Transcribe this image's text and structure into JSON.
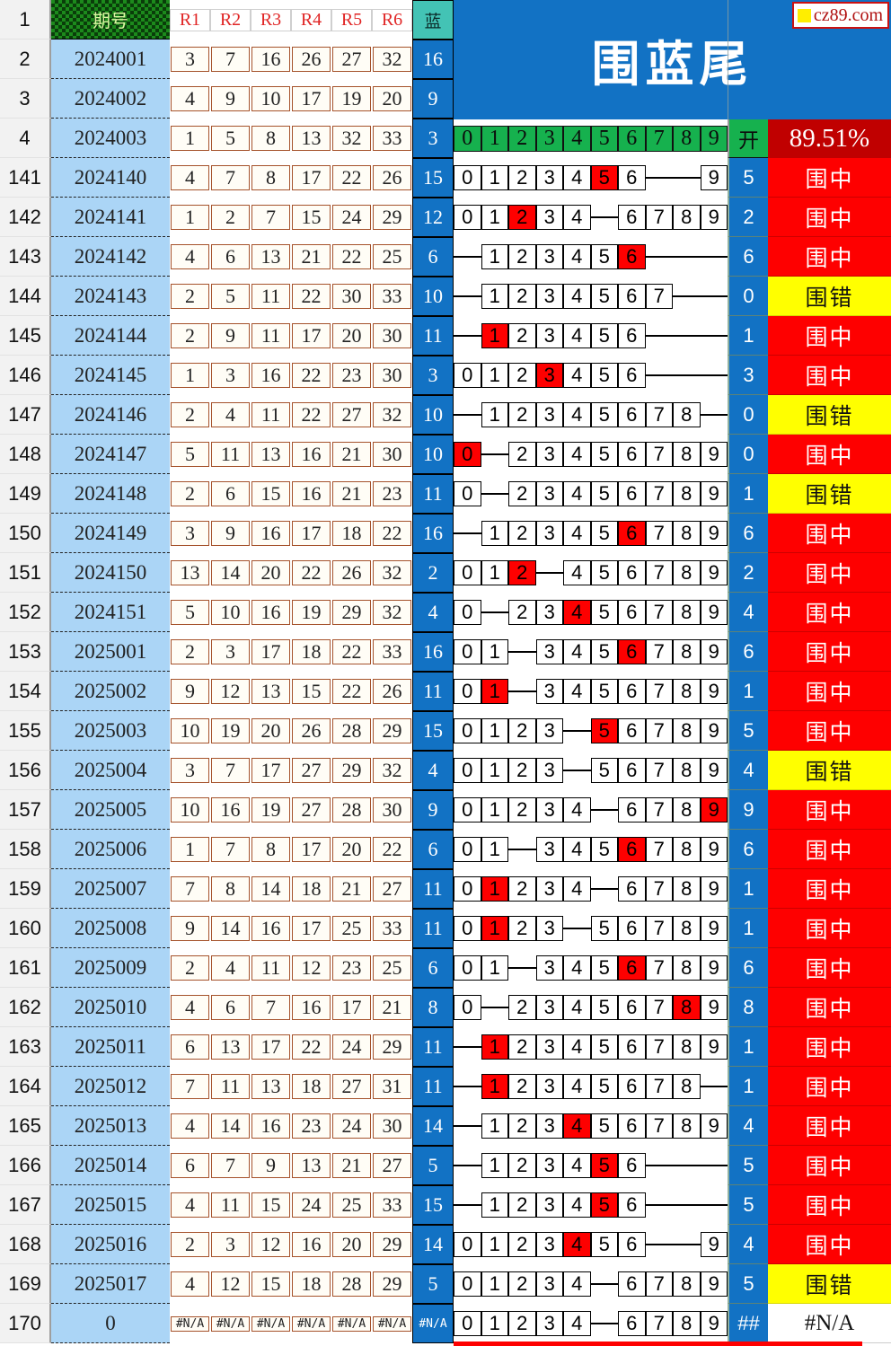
{
  "columns": {
    "period_label": "期号",
    "r_labels": [
      "R1",
      "R2",
      "R3",
      "R4",
      "R5",
      "R6"
    ],
    "blue_label": "蓝",
    "digit_labels": [
      "0",
      "1",
      "2",
      "3",
      "4",
      "5",
      "6",
      "7",
      "8",
      "9"
    ],
    "open_label": "开",
    "rate": "89.51%"
  },
  "title": {
    "text": "围蓝尾",
    "logo": "cz89.com"
  },
  "frozen_rows": [
    {
      "n": "2",
      "period": "2024001",
      "r": [
        "3",
        "7",
        "16",
        "26",
        "27",
        "32"
      ],
      "blue": "16"
    },
    {
      "n": "3",
      "period": "2024002",
      "r": [
        "4",
        "9",
        "10",
        "17",
        "19",
        "20"
      ],
      "blue": "9"
    },
    {
      "n": "4",
      "period": "2024003",
      "r": [
        "1",
        "5",
        "8",
        "13",
        "32",
        "33"
      ],
      "blue": "3"
    }
  ],
  "rows": [
    {
      "n": "141",
      "period": "2024140",
      "r": [
        "4",
        "7",
        "8",
        "17",
        "22",
        "26"
      ],
      "blue": "15",
      "cells": [
        "0",
        "1",
        "2",
        "3",
        "4",
        "5",
        "6",
        "",
        "",
        "9"
      ],
      "red": 5,
      "open": "5",
      "result": "围中",
      "status": "hit"
    },
    {
      "n": "142",
      "period": "2024141",
      "r": [
        "1",
        "2",
        "7",
        "15",
        "24",
        "29"
      ],
      "blue": "12",
      "cells": [
        "0",
        "1",
        "2",
        "3",
        "4",
        "",
        "6",
        "7",
        "8",
        "9"
      ],
      "red": 2,
      "open": "2",
      "result": "围中",
      "status": "hit"
    },
    {
      "n": "143",
      "period": "2024142",
      "r": [
        "4",
        "6",
        "13",
        "21",
        "22",
        "25"
      ],
      "blue": "6",
      "cells": [
        "",
        "1",
        "2",
        "3",
        "4",
        "5",
        "6",
        "",
        "",
        ""
      ],
      "red": 6,
      "open": "6",
      "result": "围中",
      "status": "hit"
    },
    {
      "n": "144",
      "period": "2024143",
      "r": [
        "2",
        "5",
        "11",
        "22",
        "30",
        "33"
      ],
      "blue": "10",
      "cells": [
        "",
        "1",
        "2",
        "3",
        "4",
        "5",
        "6",
        "7",
        "",
        ""
      ],
      "red": -1,
      "open": "0",
      "result": "围错",
      "status": "miss"
    },
    {
      "n": "145",
      "period": "2024144",
      "r": [
        "2",
        "9",
        "11",
        "17",
        "20",
        "30"
      ],
      "blue": "11",
      "cells": [
        "",
        "1",
        "2",
        "3",
        "4",
        "5",
        "6",
        "",
        "",
        ""
      ],
      "red": 1,
      "open": "1",
      "result": "围中",
      "status": "hit"
    },
    {
      "n": "146",
      "period": "2024145",
      "r": [
        "1",
        "3",
        "16",
        "22",
        "23",
        "30"
      ],
      "blue": "3",
      "cells": [
        "0",
        "1",
        "2",
        "3",
        "4",
        "5",
        "6",
        "",
        "",
        ""
      ],
      "red": 3,
      "open": "3",
      "result": "围中",
      "status": "hit"
    },
    {
      "n": "147",
      "period": "2024146",
      "r": [
        "2",
        "4",
        "11",
        "22",
        "27",
        "32"
      ],
      "blue": "10",
      "cells": [
        "",
        "1",
        "2",
        "3",
        "4",
        "5",
        "6",
        "7",
        "8",
        ""
      ],
      "red": -1,
      "open": "0",
      "result": "围错",
      "status": "miss"
    },
    {
      "n": "148",
      "period": "2024147",
      "r": [
        "5",
        "11",
        "13",
        "16",
        "21",
        "30"
      ],
      "blue": "10",
      "cells": [
        "0",
        "",
        "2",
        "3",
        "4",
        "5",
        "6",
        "7",
        "8",
        "9"
      ],
      "red": 0,
      "open": "0",
      "result": "围中",
      "status": "hit"
    },
    {
      "n": "149",
      "period": "2024148",
      "r": [
        "2",
        "6",
        "15",
        "16",
        "21",
        "23"
      ],
      "blue": "11",
      "cells": [
        "0",
        "",
        "2",
        "3",
        "4",
        "5",
        "6",
        "7",
        "8",
        "9"
      ],
      "red": -1,
      "open": "1",
      "result": "围错",
      "status": "miss"
    },
    {
      "n": "150",
      "period": "2024149",
      "r": [
        "3",
        "9",
        "16",
        "17",
        "18",
        "22"
      ],
      "blue": "16",
      "cells": [
        "",
        "1",
        "2",
        "3",
        "4",
        "5",
        "6",
        "7",
        "8",
        "9"
      ],
      "red": 6,
      "open": "6",
      "result": "围中",
      "status": "hit"
    },
    {
      "n": "151",
      "period": "2024150",
      "r": [
        "13",
        "14",
        "20",
        "22",
        "26",
        "32"
      ],
      "blue": "2",
      "cells": [
        "0",
        "1",
        "2",
        "",
        "4",
        "5",
        "6",
        "7",
        "8",
        "9"
      ],
      "red": 2,
      "open": "2",
      "result": "围中",
      "status": "hit"
    },
    {
      "n": "152",
      "period": "2024151",
      "r": [
        "5",
        "10",
        "16",
        "19",
        "29",
        "32"
      ],
      "blue": "4",
      "cells": [
        "0",
        "",
        "2",
        "3",
        "4",
        "5",
        "6",
        "7",
        "8",
        "9"
      ],
      "red": 4,
      "open": "4",
      "result": "围中",
      "status": "hit"
    },
    {
      "n": "153",
      "period": "2025001",
      "r": [
        "2",
        "3",
        "17",
        "18",
        "22",
        "33"
      ],
      "blue": "16",
      "cells": [
        "0",
        "1",
        "",
        "3",
        "4",
        "5",
        "6",
        "7",
        "8",
        "9"
      ],
      "red": 6,
      "open": "6",
      "result": "围中",
      "status": "hit"
    },
    {
      "n": "154",
      "period": "2025002",
      "r": [
        "9",
        "12",
        "13",
        "15",
        "22",
        "26"
      ],
      "blue": "11",
      "cells": [
        "0",
        "1",
        "",
        "3",
        "4",
        "5",
        "6",
        "7",
        "8",
        "9"
      ],
      "red": 1,
      "open": "1",
      "result": "围中",
      "status": "hit"
    },
    {
      "n": "155",
      "period": "2025003",
      "r": [
        "10",
        "19",
        "20",
        "26",
        "28",
        "29"
      ],
      "blue": "15",
      "cells": [
        "0",
        "1",
        "2",
        "3",
        "",
        "5",
        "6",
        "7",
        "8",
        "9"
      ],
      "red": 5,
      "open": "5",
      "result": "围中",
      "status": "hit"
    },
    {
      "n": "156",
      "period": "2025004",
      "r": [
        "3",
        "7",
        "17",
        "27",
        "29",
        "32"
      ],
      "blue": "4",
      "cells": [
        "0",
        "1",
        "2",
        "3",
        "",
        "5",
        "6",
        "7",
        "8",
        "9"
      ],
      "red": -1,
      "open": "4",
      "result": "围错",
      "status": "miss"
    },
    {
      "n": "157",
      "period": "2025005",
      "r": [
        "10",
        "16",
        "19",
        "27",
        "28",
        "30"
      ],
      "blue": "9",
      "cells": [
        "0",
        "1",
        "2",
        "3",
        "4",
        "",
        "6",
        "7",
        "8",
        "9"
      ],
      "red": 9,
      "open": "9",
      "result": "围中",
      "status": "hit"
    },
    {
      "n": "158",
      "period": "2025006",
      "r": [
        "1",
        "7",
        "8",
        "17",
        "20",
        "22"
      ],
      "blue": "6",
      "cells": [
        "0",
        "1",
        "",
        "3",
        "4",
        "5",
        "6",
        "7",
        "8",
        "9"
      ],
      "red": 6,
      "open": "6",
      "result": "围中",
      "status": "hit"
    },
    {
      "n": "159",
      "period": "2025007",
      "r": [
        "7",
        "8",
        "14",
        "18",
        "21",
        "27"
      ],
      "blue": "11",
      "cells": [
        "0",
        "1",
        "2",
        "3",
        "4",
        "",
        "6",
        "7",
        "8",
        "9"
      ],
      "red": 1,
      "open": "1",
      "result": "围中",
      "status": "hit"
    },
    {
      "n": "160",
      "period": "2025008",
      "r": [
        "9",
        "14",
        "16",
        "17",
        "25",
        "33"
      ],
      "blue": "11",
      "cells": [
        "0",
        "1",
        "2",
        "3",
        "",
        "5",
        "6",
        "7",
        "8",
        "9"
      ],
      "red": 1,
      "open": "1",
      "result": "围中",
      "status": "hit"
    },
    {
      "n": "161",
      "period": "2025009",
      "r": [
        "2",
        "4",
        "11",
        "12",
        "23",
        "25"
      ],
      "blue": "6",
      "cells": [
        "0",
        "1",
        "",
        "3",
        "4",
        "5",
        "6",
        "7",
        "8",
        "9"
      ],
      "red": 6,
      "open": "6",
      "result": "围中",
      "status": "hit"
    },
    {
      "n": "162",
      "period": "2025010",
      "r": [
        "4",
        "6",
        "7",
        "16",
        "17",
        "21"
      ],
      "blue": "8",
      "cells": [
        "0",
        "",
        "2",
        "3",
        "4",
        "5",
        "6",
        "7",
        "8",
        "9"
      ],
      "red": 8,
      "open": "8",
      "result": "围中",
      "status": "hit"
    },
    {
      "n": "163",
      "period": "2025011",
      "r": [
        "6",
        "13",
        "17",
        "22",
        "24",
        "29"
      ],
      "blue": "11",
      "cells": [
        "",
        "1",
        "2",
        "3",
        "4",
        "5",
        "6",
        "7",
        "8",
        "9"
      ],
      "red": 1,
      "open": "1",
      "result": "围中",
      "status": "hit"
    },
    {
      "n": "164",
      "period": "2025012",
      "r": [
        "7",
        "11",
        "13",
        "18",
        "27",
        "31"
      ],
      "blue": "11",
      "cells": [
        "",
        "1",
        "2",
        "3",
        "4",
        "5",
        "6",
        "7",
        "8",
        ""
      ],
      "red": 1,
      "open": "1",
      "result": "围中",
      "status": "hit"
    },
    {
      "n": "165",
      "period": "2025013",
      "r": [
        "4",
        "14",
        "16",
        "23",
        "24",
        "30"
      ],
      "blue": "14",
      "cells": [
        "",
        "1",
        "2",
        "3",
        "4",
        "5",
        "6",
        "7",
        "8",
        "9"
      ],
      "red": 4,
      "open": "4",
      "result": "围中",
      "status": "hit"
    },
    {
      "n": "166",
      "period": "2025014",
      "r": [
        "6",
        "7",
        "9",
        "13",
        "21",
        "27"
      ],
      "blue": "5",
      "cells": [
        "",
        "1",
        "2",
        "3",
        "4",
        "5",
        "6",
        "",
        "",
        ""
      ],
      "red": 5,
      "open": "5",
      "result": "围中",
      "status": "hit"
    },
    {
      "n": "167",
      "period": "2025015",
      "r": [
        "4",
        "11",
        "15",
        "24",
        "25",
        "33"
      ],
      "blue": "15",
      "cells": [
        "",
        "1",
        "2",
        "3",
        "4",
        "5",
        "6",
        "",
        "",
        ""
      ],
      "red": 5,
      "open": "5",
      "result": "围中",
      "status": "hit"
    },
    {
      "n": "168",
      "period": "2025016",
      "r": [
        "2",
        "3",
        "12",
        "16",
        "20",
        "29"
      ],
      "blue": "14",
      "cells": [
        "0",
        "1",
        "2",
        "3",
        "4",
        "5",
        "6",
        "",
        "",
        "9"
      ],
      "red": 4,
      "open": "4",
      "result": "围中",
      "status": "hit"
    },
    {
      "n": "169",
      "period": "2025017",
      "r": [
        "4",
        "12",
        "15",
        "18",
        "28",
        "29"
      ],
      "blue": "5",
      "cells": [
        "0",
        "1",
        "2",
        "3",
        "4",
        "",
        "6",
        "7",
        "8",
        "9"
      ],
      "red": -1,
      "open": "5",
      "result": "围错",
      "status": "miss"
    },
    {
      "n": "170",
      "period": "0",
      "r": [
        "#N/A",
        "#N/A",
        "#N/A",
        "#N/A",
        "#N/A",
        "#N/A"
      ],
      "blue": "#N/A",
      "cells": [
        "0",
        "1",
        "2",
        "3",
        "4",
        "",
        "6",
        "7",
        "8",
        "9"
      ],
      "red": -1,
      "open": "##",
      "result": "#N/A",
      "status": "na"
    }
  ],
  "colors": {
    "band_blue": "#1272c4",
    "teal": "#43c3b5",
    "green": "#16b14e",
    "hit_red": "#fe0000",
    "miss_yellow": "#ffff00",
    "rate_dark_red": "#c00000",
    "period_light_blue": "#abd5f6"
  }
}
